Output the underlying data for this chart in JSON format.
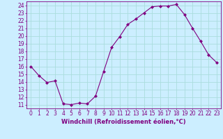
{
  "x": [
    0,
    1,
    2,
    3,
    4,
    5,
    6,
    7,
    8,
    9,
    10,
    11,
    12,
    13,
    14,
    15,
    16,
    17,
    18,
    19,
    20,
    21,
    22,
    23
  ],
  "y": [
    16,
    14.8,
    13.9,
    14.1,
    11.1,
    11.0,
    11.2,
    11.1,
    12.1,
    15.3,
    18.5,
    19.9,
    21.5,
    22.2,
    23.0,
    23.8,
    23.9,
    23.9,
    24.1,
    22.8,
    21.0,
    19.3,
    17.5,
    16.5
  ],
  "line_color": "#800080",
  "marker": "D",
  "marker_size": 2,
  "background_color": "#cceeff",
  "grid_color": "#aadddd",
  "xlabel": "Windchill (Refroidissement éolien,°C)",
  "xlabel_color": "#800080",
  "ylabel_ticks": [
    11,
    12,
    13,
    14,
    15,
    16,
    17,
    18,
    19,
    20,
    21,
    22,
    23,
    24
  ],
  "ylim": [
    10.5,
    24.5
  ],
  "xlim": [
    -0.5,
    23.5
  ],
  "tick_color": "#800080",
  "tick_fontsize": 5.5,
  "label_fontsize": 6.0
}
